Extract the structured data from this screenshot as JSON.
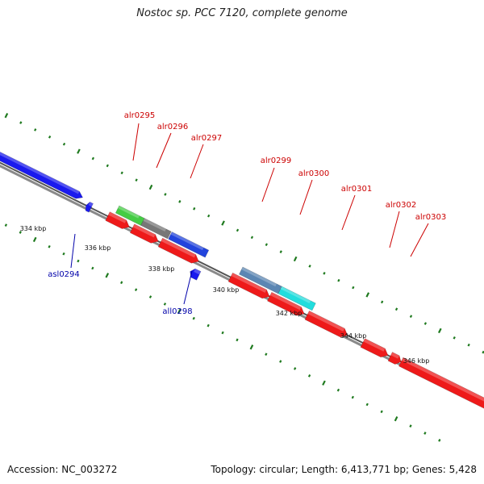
{
  "title": "Nostoc sp. PCC 7120, complete genome",
  "footer": {
    "accession": "Accession: NC_003272",
    "topology": "Topology: circular; Length: 6,413,771 bp; Genes: 5,428"
  },
  "colors": {
    "backbone": "#8a8a8a",
    "tick": "#1f7a1f",
    "forward_label": "#cc0000",
    "reverse_label": "#0000aa"
  },
  "scale": {
    "unit": "kbp",
    "labels": [
      {
        "kbp": 334,
        "text": "334 kbp"
      },
      {
        "kbp": 336,
        "text": "336 kbp"
      },
      {
        "kbp": 338,
        "text": "338 kbp"
      },
      {
        "kbp": 340,
        "text": "340 kbp"
      },
      {
        "kbp": 342,
        "text": "342 kbp"
      },
      {
        "kbp": 344,
        "text": "344 kbp"
      },
      {
        "kbp": 346,
        "text": "346 kbp"
      }
    ]
  },
  "genes": [
    {
      "name": "asl0294",
      "strand": "reverse",
      "color": "#1a1aee",
      "labeled": true
    },
    {
      "name": "alr0295",
      "strand": "forward",
      "color": "#ee1a1a",
      "labeled": true
    },
    {
      "name": "alr0296",
      "strand": "forward",
      "color": "#ee1a1a",
      "labeled": true
    },
    {
      "name": "alr0297",
      "strand": "forward",
      "color": "#ee1a1a",
      "labeled": true
    },
    {
      "name": "all0298",
      "strand": "reverse",
      "color": "#1a1aee",
      "labeled": true
    },
    {
      "name": "alr0299",
      "strand": "forward",
      "color": "#ee1a1a",
      "labeled": true
    },
    {
      "name": "alr0300",
      "strand": "forward",
      "color": "#ee1a1a",
      "labeled": true
    },
    {
      "name": "alr0301",
      "strand": "forward",
      "color": "#ee1a1a",
      "labeled": true
    },
    {
      "name": "alr0302",
      "strand": "forward",
      "color": "#ee1a1a",
      "labeled": true
    },
    {
      "name": "alr0303",
      "strand": "forward",
      "color": "#ee1a1a",
      "labeled": true
    }
  ],
  "features": [
    {
      "color": "#44cc44"
    },
    {
      "color": "#777777"
    },
    {
      "color": "#2244dd"
    },
    {
      "color": "#5b86b3"
    },
    {
      "color": "#22dddd"
    }
  ]
}
